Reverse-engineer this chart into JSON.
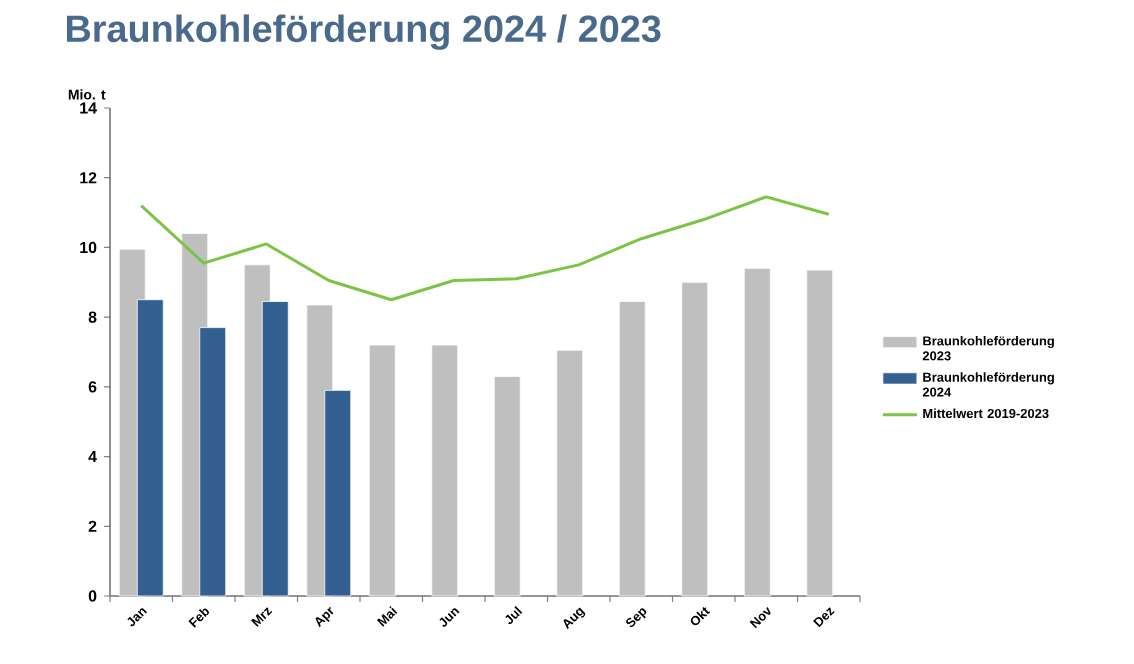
{
  "chart_data": {
    "type": "bar",
    "title": "Braunkohleförderung 2024 / 2023",
    "ylabel": "Mio. t",
    "categories": [
      "Jan",
      "Feb",
      "Mrz",
      "Apr",
      "Mai",
      "Jun",
      "Jul",
      "Aug",
      "Sep",
      "Okt",
      "Nov",
      "Dez"
    ],
    "series": [
      {
        "name": "Braunkohleförderung 2023",
        "color": "#bfbfbf",
        "values": [
          9.95,
          10.4,
          9.5,
          8.35,
          7.2,
          7.2,
          6.3,
          7.05,
          8.45,
          9.0,
          9.4,
          9.35
        ]
      },
      {
        "name": "Braunkohleförderung 2024",
        "color": "#335f91",
        "values": [
          8.5,
          7.7,
          8.45,
          5.9,
          null,
          null,
          null,
          null,
          null,
          null,
          null,
          null
        ]
      },
      {
        "name": "Mittelwert 2019-2023",
        "type": "line",
        "color": "#7cc443",
        "marker": "none",
        "values": [
          11.2,
          9.55,
          10.1,
          9.05,
          8.5,
          9.05,
          9.1,
          9.5,
          10.25,
          10.8,
          11.45,
          10.95
        ]
      }
    ],
    "ylim": [
      0,
      14
    ],
    "yticks": [
      0,
      2,
      4,
      6,
      8,
      10,
      12,
      14
    ],
    "grid": false,
    "legend": "right"
  }
}
